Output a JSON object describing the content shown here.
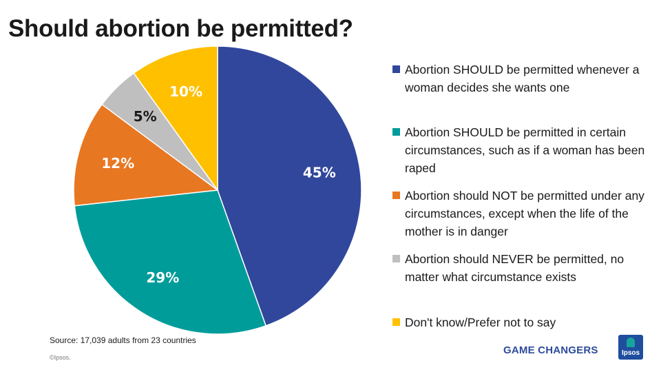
{
  "chart_data": {
    "type": "pie",
    "title": "Should abortion be permitted?",
    "slices": [
      {
        "label": "Abortion SHOULD be permitted whenever a woman decides she wants one",
        "value": 45,
        "display": "45%",
        "color": "#31479c",
        "label_color": "#ffffff"
      },
      {
        "label": "Abortion SHOULD be permitted in certain circumstances, such as if a woman has been raped",
        "value": 29,
        "display": "29%",
        "color": "#009c9a",
        "label_color": "#ffffff"
      },
      {
        "label": "Abortion should NOT be permitted under any circumstances, except when the life of the mother is in danger",
        "value": 12,
        "display": "12%",
        "color": "#e87722",
        "label_color": "#ffffff"
      },
      {
        "label": "Abortion should NEVER be permitted, no matter what circumstance exists",
        "value": 5,
        "display": "5%",
        "color": "#bfbfbf",
        "label_color": "#1a1a1a"
      },
      {
        "label": "Don't know/Prefer not to say",
        "value": 10,
        "display": "10%",
        "color": "#ffc000",
        "label_color": "#ffffff"
      }
    ],
    "legend_position": "right"
  },
  "footer": {
    "source": "Source: 17,039 adults from 23 countries",
    "copyright": "©Ipsos.",
    "tagline": "GAME CHANGERS",
    "logo_text": "Ipsos",
    "tagline_color": "#2e4b9c",
    "logo_color": "#1f4e9e"
  }
}
